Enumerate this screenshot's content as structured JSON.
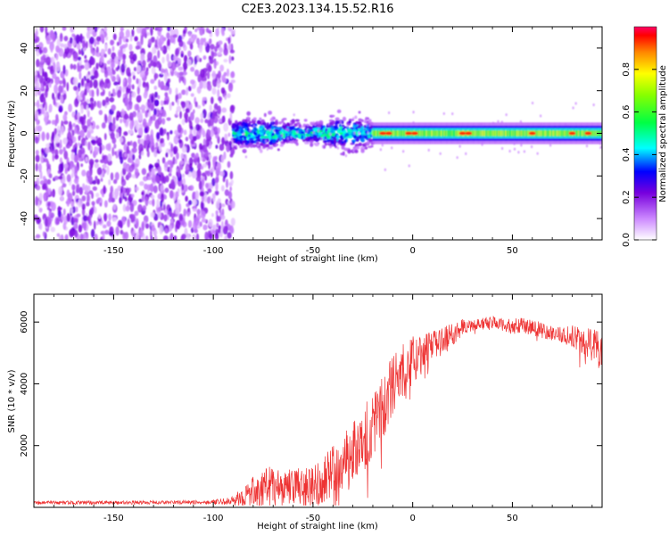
{
  "title": "C2E3.2023.134.15.52.R16",
  "chart_data": [
    {
      "type": "heatmap",
      "xlabel": "Height of straight line (km)",
      "ylabel": "Frequency (Hz)",
      "xlim": [
        -190,
        95
      ],
      "ylim": [
        -50,
        50
      ],
      "xticks": [
        -150,
        -100,
        -50,
        0,
        50
      ],
      "yticks": [
        -40,
        -20,
        0,
        20,
        40
      ],
      "colorbar": {
        "label": "Normalized spectral amplitude",
        "range": [
          0,
          1
        ],
        "ticks": [
          0.0,
          0.2,
          0.4,
          0.6,
          0.8
        ],
        "tick_labels": [
          "0.0",
          "0.2",
          "0.4",
          "0.6",
          "0.8"
        ]
      },
      "regions": [
        {
          "name": "noise",
          "x_range": [
            -190,
            -90
          ],
          "freq_range": [
            -50,
            50
          ],
          "amplitude": [
            0.0,
            0.1
          ]
        },
        {
          "name": "onset",
          "x_range": [
            -90,
            -20
          ],
          "freq_center": 0,
          "freq_halfwidth": 6,
          "amplitude": [
            0.1,
            0.5
          ]
        },
        {
          "name": "steady",
          "x_range": [
            -20,
            95
          ],
          "freq_center": 0,
          "freq_halfwidth": 3,
          "amplitude": [
            0.4,
            0.9
          ]
        }
      ]
    },
    {
      "type": "line",
      "xlabel": "Height of straight line (km)",
      "ylabel": "SNR (10 * v/v)",
      "xlim": [
        -190,
        95
      ],
      "ylim": [
        0,
        6900
      ],
      "xticks": [
        -150,
        -100,
        -50,
        0,
        50
      ],
      "yticks": [
        2000,
        4000,
        6000
      ],
      "color": "#ee3333",
      "series": [
        {
          "name": "SNR",
          "x": [
            -190,
            -160,
            -130,
            -100,
            -90,
            -85,
            -80,
            -75,
            -70,
            -65,
            -60,
            -55,
            -50,
            -45,
            -40,
            -35,
            -30,
            -25,
            -20,
            -15,
            -10,
            -5,
            0,
            5,
            10,
            15,
            20,
            25,
            30,
            35,
            40,
            45,
            50,
            55,
            60,
            65,
            70,
            75,
            80,
            85,
            90,
            95
          ],
          "values": [
            150,
            150,
            160,
            170,
            200,
            350,
            500,
            650,
            750,
            700,
            650,
            650,
            700,
            900,
            1200,
            1500,
            1800,
            2200,
            2700,
            3300,
            3900,
            4400,
            4800,
            5000,
            5200,
            5400,
            5600,
            5850,
            5900,
            5950,
            6000,
            5900,
            5850,
            5900,
            5800,
            5750,
            5650,
            5600,
            5550,
            5350,
            5250,
            5200
          ],
          "noise_amplitude": [
            60,
            60,
            60,
            70,
            150,
            350,
            500,
            600,
            600,
            600,
            600,
            650,
            700,
            750,
            800,
            900,
            1000,
            1100,
            1100,
            1100,
            1000,
            900,
            800,
            650,
            500,
            450,
            350,
            300,
            200,
            200,
            200,
            200,
            250,
            250,
            250,
            250,
            250,
            250,
            350,
            450,
            550,
            600
          ]
        }
      ]
    }
  ]
}
